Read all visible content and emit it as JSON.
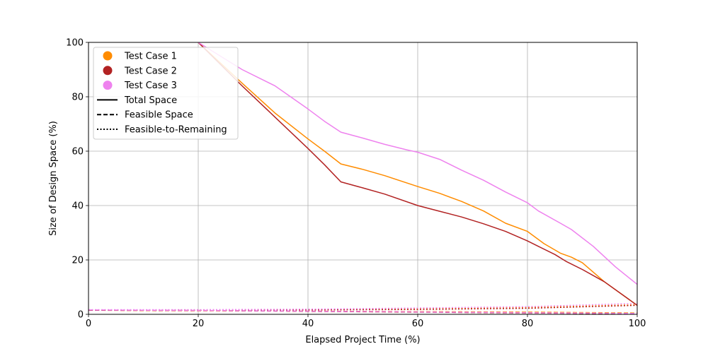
{
  "chart_data": {
    "type": "line",
    "title": "",
    "xlabel": "Elapsed Project Time (%)",
    "ylabel": "Size of Design Space (%)",
    "xlim": [
      0,
      100
    ],
    "ylim": [
      0,
      100
    ],
    "xticks": [
      0,
      20,
      40,
      60,
      80,
      100
    ],
    "yticks": [
      0,
      20,
      40,
      60,
      80,
      100
    ],
    "grid": true,
    "legend_position": "top-left",
    "series": [
      {
        "name": "Test Case 1",
        "color": "#ff8c00",
        "total_space": {
          "x": [
            20,
            28,
            34,
            40,
            43,
            46,
            50,
            54,
            60,
            64,
            68,
            72,
            76,
            80,
            83,
            86,
            88,
            90,
            94,
            100
          ],
          "y": [
            100,
            85,
            74,
            64.5,
            60,
            55.3,
            53.3,
            51,
            47,
            44.5,
            41.5,
            38,
            33.5,
            30.5,
            26,
            22.5,
            21,
            19,
            12,
            3.3
          ]
        },
        "feasible_space": {
          "x": [
            0,
            20,
            40,
            60,
            80,
            100
          ],
          "y": [
            1.5,
            1.3,
            1.2,
            1.0,
            0.8,
            0.5
          ]
        },
        "feasible_to_remaining": {
          "x": [
            0,
            20,
            40,
            60,
            80,
            100
          ],
          "y": [
            1.6,
            1.6,
            1.7,
            2.0,
            2.5,
            3.5
          ]
        }
      },
      {
        "name": "Test Case 2",
        "color": "#b22222",
        "total_space": {
          "x": [
            20,
            28,
            34,
            40,
            43,
            46,
            50,
            54,
            60,
            64,
            68,
            72,
            76,
            80,
            82,
            85,
            87,
            90,
            94,
            100
          ],
          "y": [
            100,
            84,
            72.5,
            61,
            55,
            48.7,
            46.5,
            44.2,
            40,
            37.9,
            35.8,
            33.3,
            30.5,
            27,
            25,
            22,
            19.5,
            16.5,
            12,
            3.3
          ]
        },
        "feasible_space": {
          "x": [
            0,
            20,
            40,
            60,
            80,
            100
          ],
          "y": [
            1.5,
            1.4,
            1.1,
            0.8,
            0.5,
            0.2
          ]
        },
        "feasible_to_remaining": {
          "x": [
            0,
            20,
            40,
            60,
            80,
            100
          ],
          "y": [
            1.6,
            1.5,
            1.6,
            1.8,
            2.2,
            3.3
          ]
        }
      },
      {
        "name": "Test Case 3",
        "color": "#ee82ee",
        "total_space": {
          "x": [
            20,
            28,
            34,
            40,
            43,
            46,
            50,
            54,
            58,
            60,
            64,
            68,
            72,
            76,
            80,
            82,
            86,
            88,
            92,
            96,
            100
          ],
          "y": [
            100,
            90,
            84,
            75.5,
            71,
            67,
            64.8,
            62.5,
            60.5,
            59.6,
            57,
            53,
            49.3,
            45,
            41,
            38,
            33.5,
            31.2,
            25,
            17.5,
            11
          ]
        },
        "feasible_space": {
          "x": [
            0,
            20,
            40,
            60,
            80,
            100
          ],
          "y": [
            1.6,
            1.4,
            1.2,
            0.9,
            0.6,
            0.3
          ]
        },
        "feasible_to_remaining": {
          "x": [
            0,
            20,
            40,
            60,
            80,
            100
          ],
          "y": [
            1.7,
            1.7,
            1.9,
            2.3,
            2.8,
            4.0
          ]
        }
      }
    ],
    "line_styles": [
      {
        "name": "Total Space",
        "dash": "solid"
      },
      {
        "name": "Feasible Space",
        "dash": "dashed"
      },
      {
        "name": "Feasible-to-Remaining",
        "dash": "dotted"
      }
    ]
  }
}
